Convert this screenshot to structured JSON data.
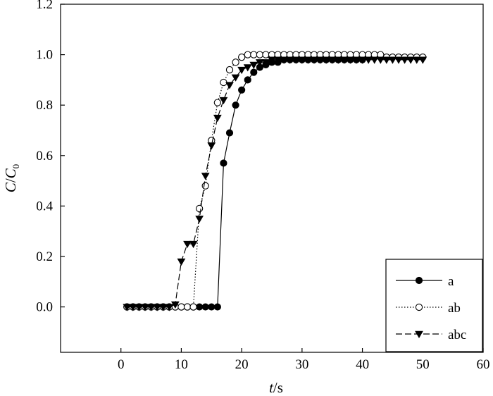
{
  "chart_data": {
    "type": "line",
    "xlabel_main": "t",
    "xlabel_unit": "/s",
    "ylabel_main": "C",
    "ylabel_sep": "/",
    "ylabel_sub_main": "C",
    "ylabel_sub": "0",
    "xlim": [
      -10,
      60
    ],
    "ylim": [
      -0.18,
      1.2
    ],
    "x_ticks": [
      0,
      10,
      20,
      30,
      40,
      50,
      60
    ],
    "y_ticks": [
      0.0,
      0.2,
      0.4,
      0.6,
      0.8,
      1.0,
      1.2
    ],
    "x_tick_labels": [
      "0",
      "10",
      "20",
      "30",
      "40",
      "50",
      "60"
    ],
    "y_tick_labels": [
      "0.0",
      "0.2",
      "0.4",
      "0.6",
      "0.8",
      "1.0",
      "1.2"
    ],
    "grid": false,
    "legend_position": "bottom-right",
    "series": [
      {
        "name": "a",
        "marker": "filled-circle",
        "line_style": "solid",
        "x": [
          1,
          2,
          3,
          4,
          5,
          6,
          7,
          8,
          9,
          10,
          11,
          12,
          13,
          14,
          15,
          16,
          17,
          18,
          19,
          20,
          21,
          22,
          23,
          24,
          25,
          26,
          27,
          28,
          29,
          30,
          31,
          32,
          33,
          34,
          35,
          36,
          37,
          38,
          39,
          40,
          41,
          42,
          43,
          44,
          45,
          46,
          47,
          48,
          49,
          50
        ],
        "y": [
          0,
          0,
          0,
          0,
          0,
          0,
          0,
          0,
          0,
          0,
          0,
          0,
          0,
          0,
          0,
          0,
          0.57,
          0.69,
          0.8,
          0.86,
          0.9,
          0.93,
          0.95,
          0.96,
          0.97,
          0.97,
          0.98,
          0.98,
          0.98,
          0.98,
          0.98,
          0.98,
          0.98,
          0.98,
          0.98,
          0.98,
          0.98,
          0.98,
          0.98,
          0.98,
          0.99,
          0.99,
          0.99,
          0.99,
          0.99,
          0.99,
          0.99,
          0.99,
          0.99,
          0.99
        ]
      },
      {
        "name": "ab",
        "marker": "open-circle",
        "line_style": "dotted",
        "x": [
          1,
          2,
          3,
          4,
          5,
          6,
          7,
          8,
          9,
          10,
          11,
          12,
          13,
          14,
          15,
          16,
          17,
          18,
          19,
          20,
          21,
          22,
          23,
          24,
          25,
          26,
          27,
          28,
          29,
          30,
          31,
          32,
          33,
          34,
          35,
          36,
          37,
          38,
          39,
          40,
          41,
          42,
          43,
          44,
          45,
          46,
          47,
          48,
          49,
          50
        ],
        "y": [
          0,
          0,
          0,
          0,
          0,
          0,
          0,
          0,
          0,
          0,
          0,
          0,
          0.39,
          0.48,
          0.66,
          0.81,
          0.89,
          0.94,
          0.97,
          0.99,
          1.0,
          1.0,
          1.0,
          1.0,
          1.0,
          1.0,
          1.0,
          1.0,
          1.0,
          1.0,
          1.0,
          1.0,
          1.0,
          1.0,
          1.0,
          1.0,
          1.0,
          1.0,
          1.0,
          1.0,
          1.0,
          1.0,
          1.0,
          0.99,
          0.99,
          0.99,
          0.99,
          0.99,
          0.99,
          0.99
        ]
      },
      {
        "name": "abc",
        "marker": "filled-triangle-down",
        "line_style": "dashed",
        "x": [
          1,
          2,
          3,
          4,
          5,
          6,
          7,
          8,
          9,
          10,
          11,
          12,
          13,
          14,
          15,
          16,
          17,
          18,
          19,
          20,
          21,
          22,
          23,
          24,
          25,
          26,
          27,
          28,
          29,
          30,
          31,
          32,
          33,
          34,
          35,
          36,
          37,
          38,
          39,
          40,
          41,
          42,
          43,
          44,
          45,
          46,
          47,
          48,
          49,
          50
        ],
        "y": [
          0,
          0,
          0,
          0,
          0,
          0,
          0,
          0,
          0.01,
          0.18,
          0.25,
          0.25,
          0.35,
          0.52,
          0.64,
          0.75,
          0.82,
          0.88,
          0.91,
          0.94,
          0.95,
          0.96,
          0.97,
          0.97,
          0.98,
          0.98,
          0.98,
          0.98,
          0.98,
          0.98,
          0.98,
          0.98,
          0.98,
          0.98,
          0.98,
          0.98,
          0.98,
          0.98,
          0.98,
          0.98,
          0.98,
          0.98,
          0.98,
          0.98,
          0.98,
          0.98,
          0.98,
          0.98,
          0.98,
          0.98
        ]
      }
    ]
  },
  "colors": {
    "ink": "#000000",
    "background": "#ffffff"
  }
}
